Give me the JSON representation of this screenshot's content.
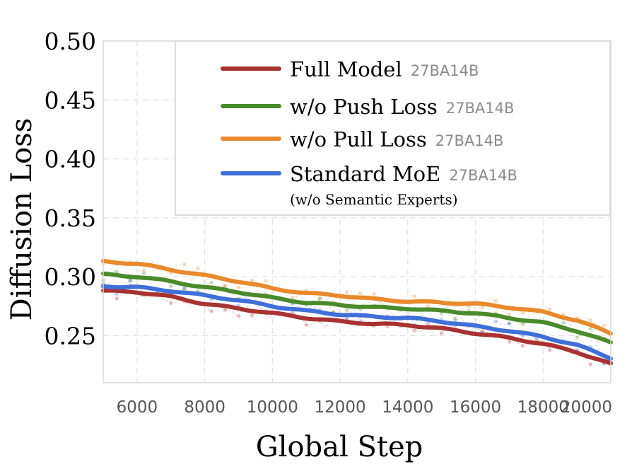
{
  "chart_data": {
    "type": "line",
    "xlabel": "Global Step",
    "ylabel": "Diffusion Loss",
    "xlim": [
      5000,
      20000
    ],
    "ylim": [
      0.21,
      0.5
    ],
    "x_ticks": [
      6000,
      8000,
      10000,
      12000,
      14000,
      16000,
      18000,
      20000
    ],
    "y_ticks": [
      0.25,
      0.3,
      0.35,
      0.4,
      0.45,
      0.5
    ],
    "y_tick_labels": [
      "0.25",
      "0.30",
      "0.35",
      "0.40",
      "0.45",
      "0.50"
    ],
    "grid": true,
    "legend_position": "top-right",
    "x": [
      5000,
      6000,
      7000,
      8000,
      9000,
      10000,
      11000,
      12000,
      13000,
      14000,
      15000,
      16000,
      17000,
      18000,
      19000,
      20000
    ],
    "series": [
      {
        "name": "Full Model",
        "tag": "27BA14B",
        "color": "#a83232",
        "values": [
          0.288,
          0.287,
          0.283,
          0.277,
          0.273,
          0.269,
          0.265,
          0.262,
          0.26,
          0.259,
          0.256,
          0.252,
          0.248,
          0.243,
          0.236,
          0.226
        ]
      },
      {
        "name": "w/o Push Loss",
        "tag": "27BA14B",
        "color": "#4a8a2a",
        "values": [
          0.302,
          0.3,
          0.296,
          0.291,
          0.287,
          0.282,
          0.278,
          0.276,
          0.274,
          0.273,
          0.271,
          0.269,
          0.265,
          0.261,
          0.254,
          0.244
        ]
      },
      {
        "name": "w/o Pull Loss",
        "tag": "27BA14B",
        "color": "#e8892b",
        "values": [
          0.313,
          0.311,
          0.306,
          0.301,
          0.296,
          0.29,
          0.286,
          0.284,
          0.281,
          0.279,
          0.278,
          0.277,
          0.274,
          0.27,
          0.263,
          0.252
        ]
      },
      {
        "name": "Standard MoE",
        "tag": "27BA14B",
        "sublabel": "(w/o Semantic Experts)",
        "color": "#3f6fd8",
        "values": [
          0.292,
          0.291,
          0.288,
          0.284,
          0.28,
          0.275,
          0.271,
          0.268,
          0.266,
          0.265,
          0.262,
          0.258,
          0.254,
          0.249,
          0.242,
          0.231
        ]
      }
    ]
  }
}
